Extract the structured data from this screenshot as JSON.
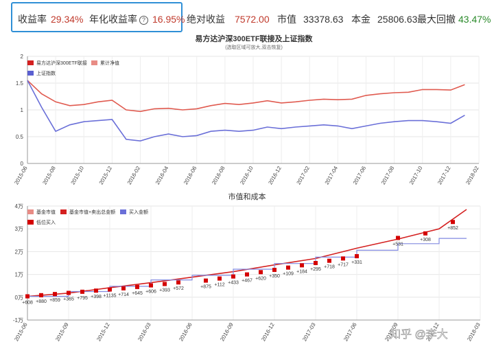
{
  "stats": {
    "return_label": "收益率",
    "return_value": "29.34%",
    "annual_label": "年化收益率",
    "help_glyph": "?",
    "annual_value": "16.95%",
    "abs_label": "绝对收益",
    "abs_value": "7572.00",
    "mv_label": "市值",
    "mv_value": "33378.63",
    "principal_label": "本金",
    "principal_value": "25806.63",
    "drawdown_label": "最大回撤",
    "drawdown_value": "43.47%"
  },
  "colors": {
    "highlight": "#2f8fd6",
    "nav": "#e05a4f",
    "index": "#6a6fd8",
    "cost": "#8088e0",
    "market": "#d42020",
    "low_buy": "#d40000"
  },
  "watermark": "知乎 @李大",
  "chart_data": [
    {
      "type": "line",
      "title": "易方达沪深300ETF联接及上证指数",
      "subtitle": "(选取区域可放大,双击恢复)",
      "legend": [
        "易方达沪深300ETF联接",
        "累计净值",
        "上证指数"
      ],
      "legend_position": "top-left",
      "grid": true,
      "x_ticks": [
        "2015-06",
        "2015-08",
        "2015-10",
        "2015-12",
        "2016-02",
        "2016-04",
        "2016-06",
        "2016-08",
        "2016-10",
        "2016-12",
        "2017-02",
        "2017-04",
        "2017-06",
        "2017-08",
        "2017-10",
        "2017-12",
        "2018-02"
      ],
      "ylim": [
        0,
        2
      ],
      "y_ticks": [
        "0",
        "0.5",
        "1",
        "1.5",
        "2"
      ],
      "series": [
        {
          "name": "累计净值",
          "x": [
            "2015-06",
            "2015-07",
            "2015-08",
            "2015-09",
            "2015-10",
            "2015-11",
            "2015-12",
            "2016-01",
            "2016-02",
            "2016-03",
            "2016-04",
            "2016-05",
            "2016-06",
            "2016-07",
            "2016-08",
            "2016-09",
            "2016-10",
            "2016-11",
            "2016-12",
            "2017-01",
            "2017-02",
            "2017-03",
            "2017-04",
            "2017-05",
            "2017-06",
            "2017-07",
            "2017-08",
            "2017-09",
            "2017-10",
            "2017-11",
            "2017-12",
            "2018-01"
          ],
          "values": [
            1.55,
            1.3,
            1.15,
            1.08,
            1.1,
            1.15,
            1.18,
            1.0,
            0.97,
            1.02,
            1.03,
            1.0,
            1.02,
            1.08,
            1.12,
            1.1,
            1.13,
            1.17,
            1.13,
            1.15,
            1.18,
            1.2,
            1.19,
            1.2,
            1.27,
            1.3,
            1.32,
            1.33,
            1.38,
            1.38,
            1.37,
            1.47
          ]
        },
        {
          "name": "上证指数",
          "x": [
            "2015-06",
            "2015-07",
            "2015-08",
            "2015-09",
            "2015-10",
            "2015-11",
            "2015-12",
            "2016-01",
            "2016-02",
            "2016-03",
            "2016-04",
            "2016-05",
            "2016-06",
            "2016-07",
            "2016-08",
            "2016-09",
            "2016-10",
            "2016-11",
            "2016-12",
            "2017-01",
            "2017-02",
            "2017-03",
            "2017-04",
            "2017-05",
            "2017-06",
            "2017-07",
            "2017-08",
            "2017-09",
            "2017-10",
            "2017-11",
            "2017-12",
            "2018-01"
          ],
          "values": [
            1.55,
            1.05,
            0.6,
            0.72,
            0.78,
            0.8,
            0.82,
            0.45,
            0.42,
            0.5,
            0.55,
            0.5,
            0.52,
            0.6,
            0.62,
            0.6,
            0.62,
            0.68,
            0.65,
            0.68,
            0.7,
            0.72,
            0.7,
            0.65,
            0.7,
            0.75,
            0.78,
            0.8,
            0.8,
            0.78,
            0.75,
            0.9
          ]
        }
      ]
    },
    {
      "type": "line",
      "title": "市值和成本",
      "legend": [
        "基金市值",
        "基金市值+卖出总金额",
        "买入金额",
        "低位买入"
      ],
      "legend_position": "top-left",
      "grid": true,
      "x_ticks": [
        "2015-06",
        "2015-09",
        "2015-12",
        "2016-03",
        "2016-06",
        "2016-09",
        "2016-12",
        "2017-03",
        "2017-06",
        "2017-09",
        "2017-12",
        "2018-03"
      ],
      "ylim": [
        -10000,
        40000
      ],
      "y_ticks": [
        "-1万",
        "0万",
        "1万",
        "2万",
        "3万",
        "4万"
      ],
      "series": [
        {
          "name": "基金市值+卖出总金额",
          "x": [
            "2015-06",
            "2015-09",
            "2015-12",
            "2016-03",
            "2016-06",
            "2016-09",
            "2016-12",
            "2017-03",
            "2017-06",
            "2017-09",
            "2017-12",
            "2018-02"
          ],
          "values": [
            400,
            1800,
            4200,
            6400,
            8800,
            11200,
            14200,
            17000,
            21500,
            25500,
            30000,
            38500
          ]
        },
        {
          "name": "买入金额",
          "x": [
            "2015-06",
            "2015-09",
            "2015-12",
            "2016-03",
            "2016-06",
            "2016-09",
            "2016-12",
            "2017-03",
            "2017-06",
            "2017-09",
            "2017-12",
            "2018-02"
          ],
          "values": [
            400,
            2500,
            4800,
            7600,
            9600,
            12300,
            14800,
            17600,
            20600,
            23500,
            25800,
            25806
          ]
        }
      ],
      "low_buy_points": [
        {
          "x": "2015-06",
          "y": 400,
          "label": "+608"
        },
        {
          "x": "2015-07",
          "y": 900,
          "label": "+880"
        },
        {
          "x": "2015-08",
          "y": 1400,
          "label": "+859"
        },
        {
          "x": "2015-09",
          "y": 1900,
          "label": "+365"
        },
        {
          "x": "2015-10",
          "y": 2400,
          "label": "+795"
        },
        {
          "x": "2015-11",
          "y": 2900,
          "label": "+398"
        },
        {
          "x": "2015-12",
          "y": 3400,
          "label": "+1135"
        },
        {
          "x": "2016-01",
          "y": 3900,
          "label": "+714"
        },
        {
          "x": "2016-02",
          "y": 4500,
          "label": "+645"
        },
        {
          "x": "2016-03",
          "y": 5200,
          "label": "+606"
        },
        {
          "x": "2016-04",
          "y": 5800,
          "label": "+393"
        },
        {
          "x": "2016-05",
          "y": 6500,
          "label": "+572"
        },
        {
          "x": "2016-07",
          "y": 7300,
          "label": "+875"
        },
        {
          "x": "2016-08",
          "y": 8200,
          "label": "+112"
        },
        {
          "x": "2016-09",
          "y": 9100,
          "label": "+433"
        },
        {
          "x": "2016-10",
          "y": 10000,
          "label": "+467"
        },
        {
          "x": "2016-11",
          "y": 11000,
          "label": "+620"
        },
        {
          "x": "2016-12",
          "y": 12000,
          "label": "+350"
        },
        {
          "x": "2017-01",
          "y": 13000,
          "label": "+109"
        },
        {
          "x": "2017-02",
          "y": 14000,
          "label": "+184"
        },
        {
          "x": "2017-03",
          "y": 15000,
          "label": "+295"
        },
        {
          "x": "2017-04",
          "y": 16000,
          "label": "+718"
        },
        {
          "x": "2017-05",
          "y": 17000,
          "label": "+717"
        },
        {
          "x": "2017-06",
          "y": 18000,
          "label": "+331"
        },
        {
          "x": "2017-09",
          "y": 26000,
          "label": "+531"
        },
        {
          "x": "2017-11",
          "y": 28000,
          "label": "+308"
        },
        {
          "x": "2018-01",
          "y": 33000,
          "label": "+852"
        }
      ]
    }
  ]
}
